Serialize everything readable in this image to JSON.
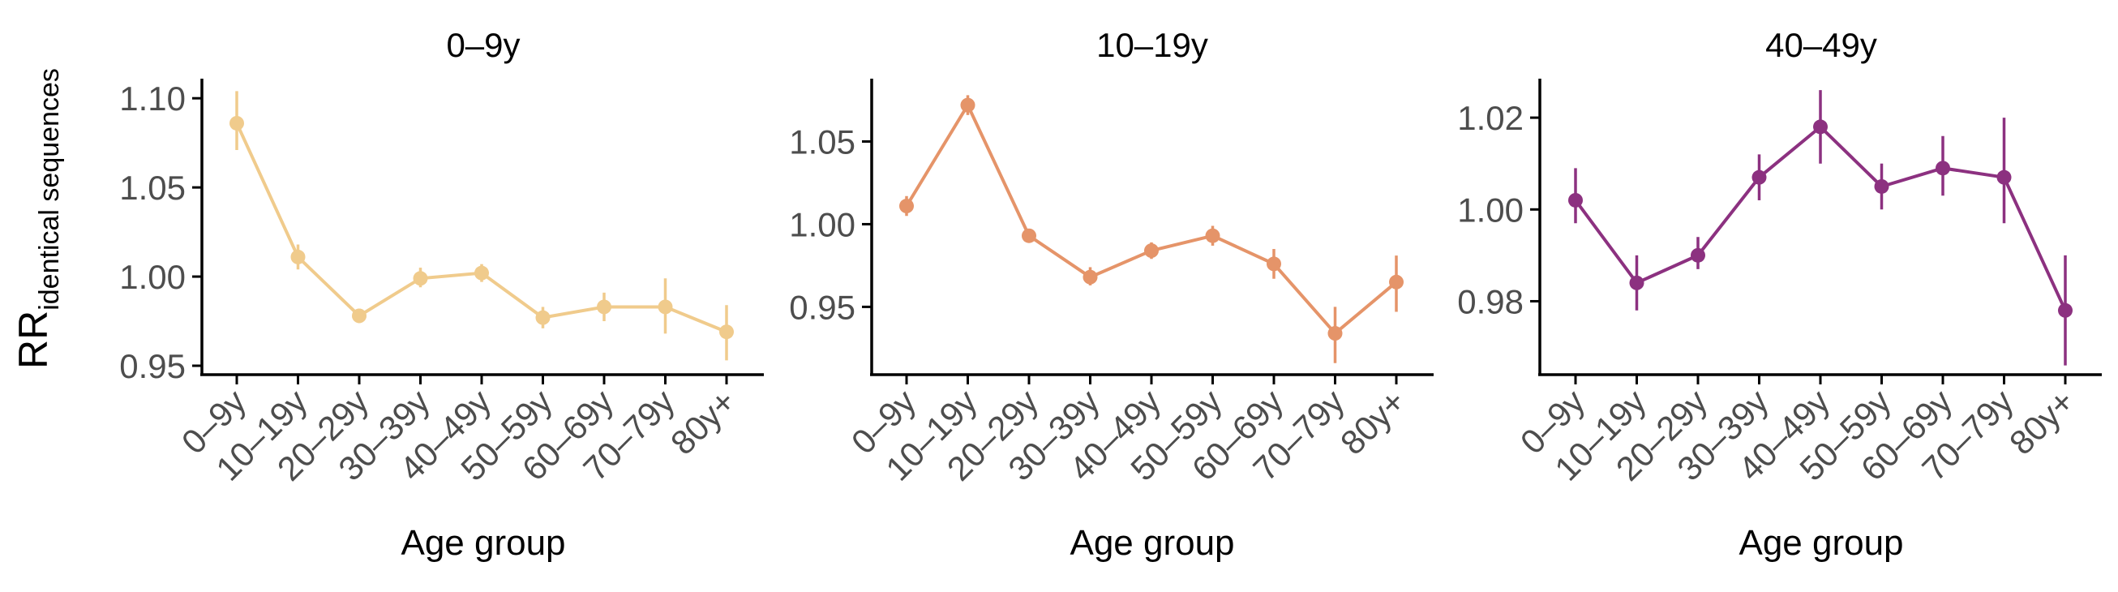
{
  "y_label": {
    "main": "RR",
    "sub": "identical sequences"
  },
  "chart_data": [
    {
      "type": "line",
      "title": "0–9y",
      "xlabel": "Age group",
      "categories": [
        "0–9y",
        "10–19y",
        "20–29y",
        "30–39y",
        "40–49y",
        "50–59y",
        "60–69y",
        "70–79y",
        "80y+"
      ],
      "values": [
        1.086,
        1.011,
        0.978,
        0.999,
        1.002,
        0.977,
        0.983,
        0.983,
        0.969
      ],
      "lower": [
        1.071,
        1.004,
        0.974,
        0.994,
        0.997,
        0.971,
        0.975,
        0.968,
        0.953
      ],
      "upper": [
        1.104,
        1.018,
        0.982,
        1.005,
        1.007,
        0.983,
        0.991,
        0.999,
        0.984
      ],
      "yticks": [
        0.95,
        1.0,
        1.05,
        1.1
      ],
      "ytick_labels": [
        "0.95",
        "1.00",
        "1.05",
        "1.10"
      ],
      "ylim": [
        0.945,
        1.111
      ],
      "color": "#f0cb8c",
      "grid": false
    },
    {
      "type": "line",
      "title": "10–19y",
      "xlabel": "Age group",
      "categories": [
        "0–9y",
        "10–19y",
        "20–29y",
        "30–39y",
        "40–49y",
        "50–59y",
        "60–69y",
        "70–79y",
        "80y+"
      ],
      "values": [
        1.011,
        1.072,
        0.993,
        0.968,
        0.984,
        0.993,
        0.976,
        0.934,
        0.965
      ],
      "lower": [
        1.005,
        1.066,
        0.989,
        0.963,
        0.979,
        0.987,
        0.967,
        0.916,
        0.947
      ],
      "upper": [
        1.017,
        1.078,
        0.997,
        0.974,
        0.989,
        0.999,
        0.985,
        0.95,
        0.981
      ],
      "yticks": [
        0.95,
        1.0,
        1.05
      ],
      "ytick_labels": [
        "0.95",
        "1.00",
        "1.05"
      ],
      "ylim": [
        0.909,
        1.088
      ],
      "color": "#e59469",
      "grid": false
    },
    {
      "type": "line",
      "title": "40–49y",
      "xlabel": "Age group",
      "categories": [
        "0–9y",
        "10–19y",
        "20–29y",
        "30–39y",
        "40–49y",
        "50–59y",
        "60–69y",
        "70–79y",
        "80y+"
      ],
      "values": [
        1.002,
        0.984,
        0.99,
        1.007,
        1.018,
        1.005,
        1.009,
        1.007,
        0.978
      ],
      "lower": [
        0.997,
        0.978,
        0.987,
        1.002,
        1.01,
        1.0,
        1.003,
        0.997,
        0.966
      ],
      "upper": [
        1.009,
        0.99,
        0.994,
        1.012,
        1.026,
        1.01,
        1.016,
        1.02,
        0.99
      ],
      "yticks": [
        0.98,
        1.0,
        1.02
      ],
      "ytick_labels": [
        "0.98",
        "1.00",
        "1.02"
      ],
      "ylim": [
        0.964,
        1.0285
      ],
      "color": "#8c3180",
      "grid": false
    }
  ]
}
